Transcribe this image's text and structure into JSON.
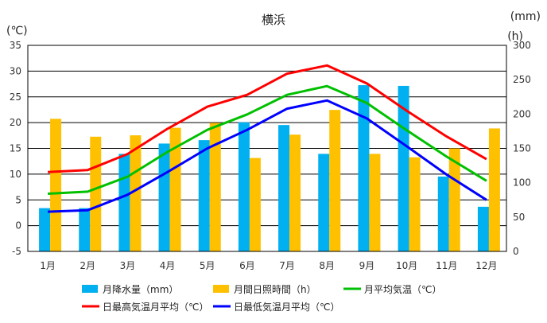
{
  "chart_data": {
    "type": "bar+line",
    "title": "横浜",
    "left_axis_unit": "(℃)",
    "right_axis_units": [
      "(mm)",
      "(h)"
    ],
    "categories": [
      "1月",
      "2月",
      "3月",
      "4月",
      "5月",
      "6月",
      "7月",
      "8月",
      "9月",
      "10月",
      "11月",
      "12月"
    ],
    "left_ylim": [
      -5,
      35
    ],
    "left_ticks": [
      -5,
      0,
      5,
      10,
      15,
      20,
      25,
      30,
      35
    ],
    "right_ylim": [
      0,
      300
    ],
    "right_ticks": [
      0,
      50,
      100,
      150,
      200,
      250,
      300
    ],
    "grid": true,
    "legend_position": "bottom",
    "series": [
      {
        "name": "月降水量（mm）",
        "kind": "bar",
        "axis": "right",
        "color": "#00b0f0",
        "values": [
          63,
          63,
          142,
          157,
          162,
          188,
          184,
          142,
          242,
          241,
          109,
          65
        ]
      },
      {
        "name": "月間日照時間（h）",
        "kind": "bar",
        "axis": "right",
        "color": "#ffc000",
        "values": [
          193,
          167,
          169,
          180,
          187,
          136,
          170,
          206,
          142,
          137,
          150,
          179
        ]
      },
      {
        "name": "月平均気温（℃）",
        "kind": "line",
        "axis": "left",
        "color": "#00c000",
        "values": [
          6.2,
          6.6,
          9.5,
          14.3,
          18.6,
          21.6,
          25.4,
          27.1,
          23.8,
          18.5,
          13.4,
          8.7
        ]
      },
      {
        "name": "日最高気温月平均（℃）",
        "kind": "line",
        "axis": "left",
        "color": "#ff0000",
        "values": [
          10.4,
          10.8,
          13.9,
          18.8,
          23.1,
          25.4,
          29.5,
          31.1,
          27.6,
          22.3,
          17.3,
          12.9
        ]
      },
      {
        "name": "日最低気温月平均（℃）",
        "kind": "line",
        "axis": "left",
        "color": "#0000ff",
        "values": [
          2.7,
          3.0,
          6.0,
          10.4,
          15.0,
          18.6,
          22.7,
          24.3,
          20.8,
          15.4,
          9.9,
          5.0
        ]
      }
    ]
  }
}
